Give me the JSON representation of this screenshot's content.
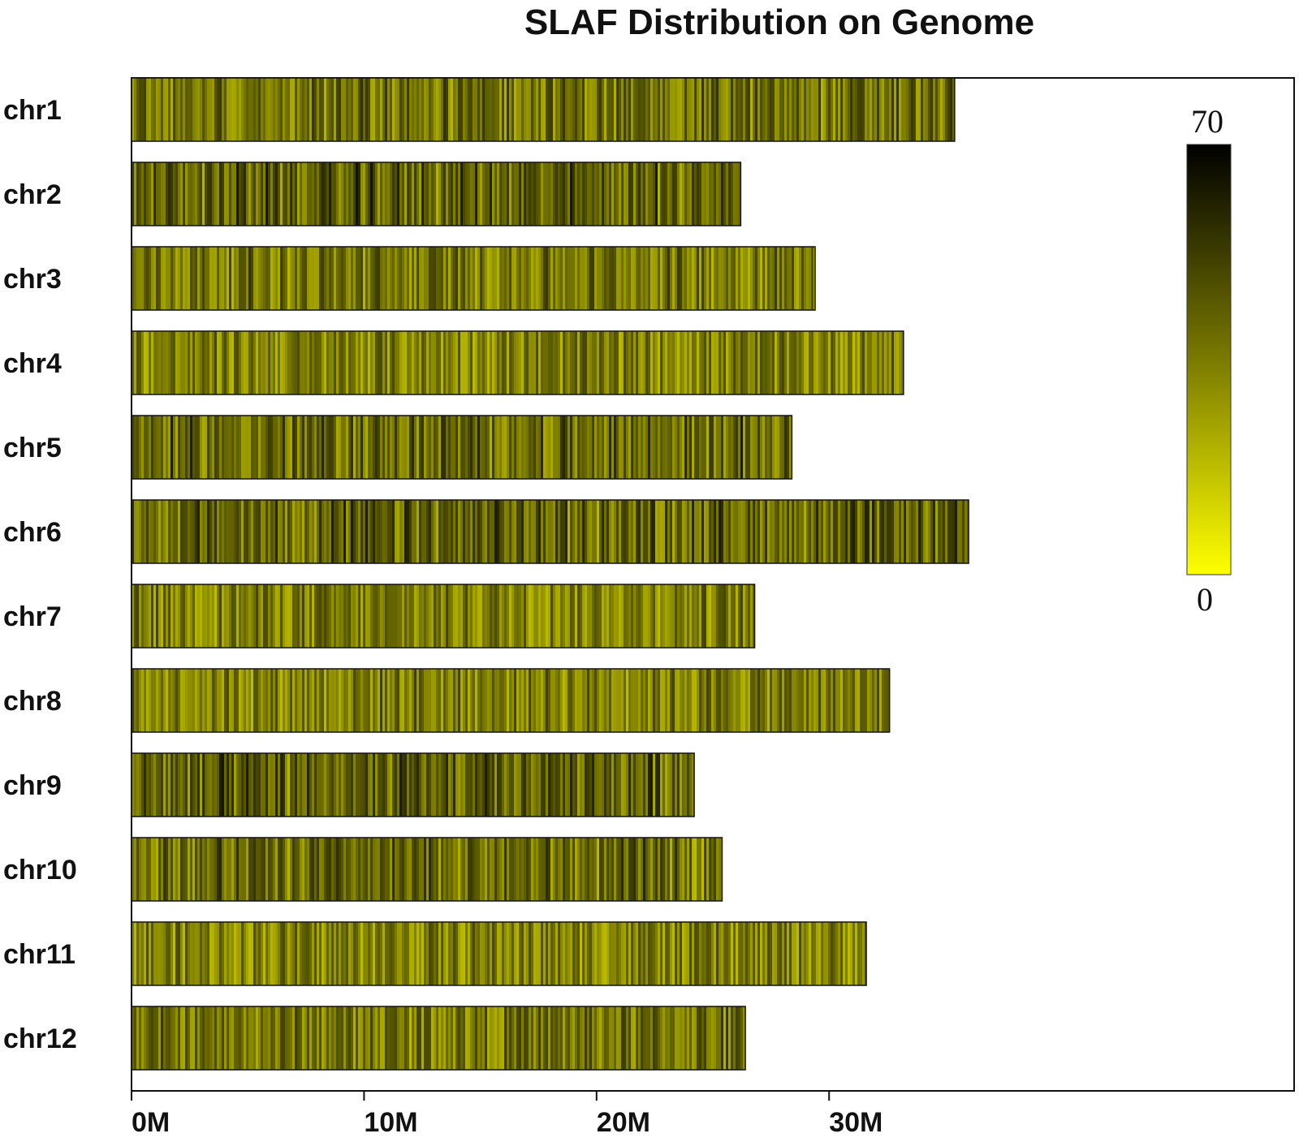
{
  "chart_data": {
    "type": "heatmap",
    "title": "SLAF Distribution on Genome",
    "xlabel": "",
    "ylabel": "",
    "xlim_mb": [
      0,
      50
    ],
    "x_ticks": [
      {
        "value": 0,
        "label": "0M"
      },
      {
        "value": 10,
        "label": "10M"
      },
      {
        "value": 20,
        "label": "20M"
      },
      {
        "value": 30,
        "label": "30M"
      }
    ],
    "chromosomes": [
      {
        "name": "chr1",
        "length_mb": 35.4
      },
      {
        "name": "chr2",
        "length_mb": 26.2
      },
      {
        "name": "chr3",
        "length_mb": 29.4
      },
      {
        "name": "chr4",
        "length_mb": 33.2
      },
      {
        "name": "chr5",
        "length_mb": 28.4
      },
      {
        "name": "chr6",
        "length_mb": 36.0
      },
      {
        "name": "chr7",
        "length_mb": 26.8
      },
      {
        "name": "chr8",
        "length_mb": 32.6
      },
      {
        "name": "chr9",
        "length_mb": 24.2
      },
      {
        "name": "chr10",
        "length_mb": 25.4
      },
      {
        "name": "chr11",
        "length_mb": 31.6
      },
      {
        "name": "chr12",
        "length_mb": 26.4
      }
    ],
    "color_scale": {
      "min": 0,
      "max": 70,
      "min_label": "0",
      "max_label": "70",
      "colors": [
        "#ffff00",
        "#bdbd00",
        "#7a7a00",
        "#3c3c00",
        "#000000"
      ]
    },
    "legend_position": "top-right"
  }
}
